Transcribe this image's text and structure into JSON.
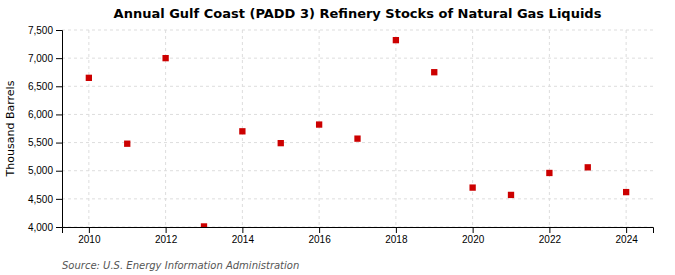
{
  "chart_data": {
    "type": "scatter",
    "title": "Annual Gulf Coast (PADD 3) Refinery Stocks of Natural Gas Liquids",
    "ylabel": "Thousand Barrels",
    "source": "Source: U.S. Energy Information Administration",
    "x": [
      2010,
      2011,
      2012,
      2013,
      2014,
      2015,
      2016,
      2017,
      2018,
      2019,
      2020,
      2021,
      2022,
      2023,
      2024
    ],
    "values": [
      6650,
      5480,
      7000,
      4010,
      5700,
      5490,
      5820,
      5570,
      7320,
      6750,
      4700,
      4570,
      4960,
      5060,
      4620
    ],
    "color": "#cc0000",
    "marker": "square",
    "xlim": [
      2009.3,
      2024.7
    ],
    "xticks": [
      2010,
      2012,
      2014,
      2016,
      2018,
      2020,
      2022,
      2024
    ],
    "ylim": [
      4000,
      7500
    ],
    "yticks": [
      {
        "value": 4000,
        "label": "4,000"
      },
      {
        "value": 4500,
        "label": "4,500"
      },
      {
        "value": 5000,
        "label": "5,000"
      },
      {
        "value": 5500,
        "label": "5,500"
      },
      {
        "value": 6000,
        "label": "6,000"
      },
      {
        "value": 6500,
        "label": "6,500"
      },
      {
        "value": 7000,
        "label": "7,000"
      },
      {
        "value": 7500,
        "label": "7,500"
      }
    ],
    "grid": true
  }
}
